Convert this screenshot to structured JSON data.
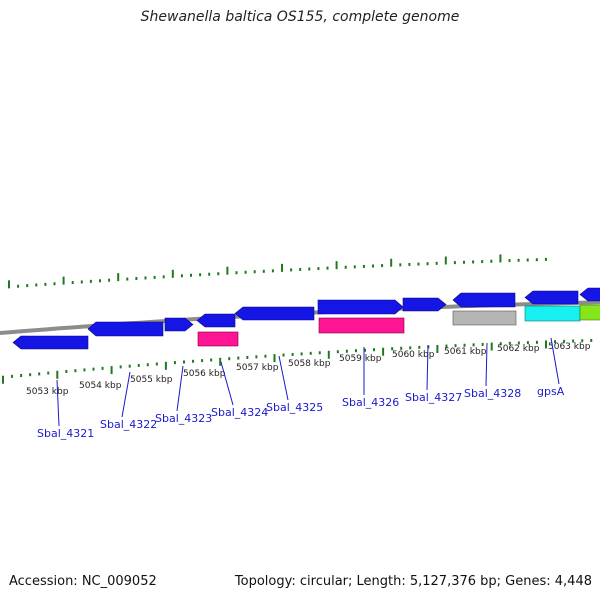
{
  "title": "Shewanella baltica OS155, complete genome",
  "footer": {
    "accession": "Accession: NC_009052",
    "topology": "Topology: circular; Length: 5,127,376 bp; Genes: 4,448"
  },
  "colors": {
    "cds_forward": "#1515e6",
    "cds_reverse": "#1515e6",
    "rna_pink": "#ff1493",
    "feature_gray": "#b5b5b5",
    "feature_cyan": "#16f0f0",
    "feature_green": "#86e61a",
    "ticks": "#1f7a1f",
    "backbone": "#8c8c8c",
    "label_blue": "#1a1acc"
  },
  "ruler": {
    "unit": "kbp",
    "labels": [
      "5053 kbp",
      "5054 kbp",
      "5055 kbp",
      "5056 kbp",
      "5057 kbp",
      "5058 kbp",
      "5059 kbp",
      "5060 kbp",
      "5061 kbp",
      "5062 kbp",
      "5063 kbp"
    ]
  },
  "genes": [
    {
      "label": "Sbal_4321"
    },
    {
      "label": "Sbal_4322"
    },
    {
      "label": "Sbal_4323"
    },
    {
      "label": "Sbal_4324"
    },
    {
      "label": "Sbal_4325"
    },
    {
      "label": "Sbal_4326"
    },
    {
      "label": "Sbal_4327"
    },
    {
      "label": "Sbal_4328"
    },
    {
      "label": "gpsA"
    }
  ]
}
